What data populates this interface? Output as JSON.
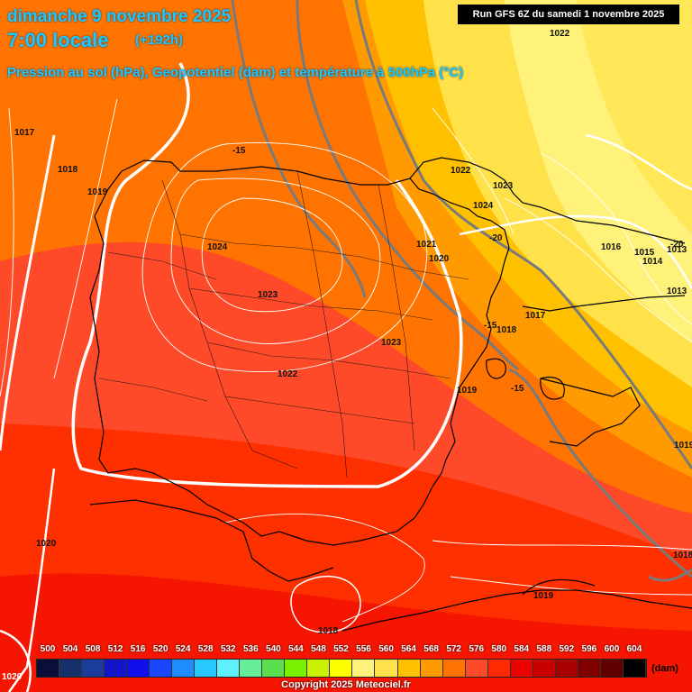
{
  "header": {
    "date": "dimanche 9 novembre 2025",
    "time": "7:00 locale",
    "lead": "(+192h)",
    "description": "Pression au sol (hPa), Geopotentiel (dam) et température à 500hPa (°C)",
    "run": "Run GFS 6Z du samedi 1 novembre 2025"
  },
  "map": {
    "region": "Péninsule ibérique",
    "pressure_labels": [
      "1022",
      "1017",
      "1018",
      "1019",
      "1024",
      "1023",
      "1023",
      "1022",
      "1022",
      "1023",
      "1024",
      "1021",
      "1020",
      "1018",
      "1017",
      "1019",
      "1016",
      "1015",
      "1014",
      "1013",
      "1013",
      "1020",
      "1018",
      "1019",
      "1018",
      "1020",
      "1019"
    ],
    "temperature_labels": [
      "-15",
      "-20",
      "-20",
      "-15",
      "-15"
    ]
  },
  "legend": {
    "values": [
      "500",
      "504",
      "508",
      "512",
      "516",
      "520",
      "524",
      "528",
      "532",
      "536",
      "540",
      "544",
      "548",
      "552",
      "556",
      "560",
      "564",
      "568",
      "572",
      "576",
      "580",
      "584",
      "588",
      "592",
      "596",
      "600",
      "604"
    ],
    "colors": [
      "#0a0f3a",
      "#15306a",
      "#1c3c9c",
      "#1414c8",
      "#1010ee",
      "#1a46ff",
      "#1e8cff",
      "#28c8ff",
      "#5ef2ff",
      "#66ee99",
      "#5ae04e",
      "#78f000",
      "#c8f000",
      "#ffff00",
      "#fff27a",
      "#ffe24a",
      "#ffc000",
      "#ff9a00",
      "#ff7400",
      "#ff4a2a",
      "#ff2a00",
      "#ec0000",
      "#c80000",
      "#a80000",
      "#800000",
      "#600000",
      "#000000"
    ],
    "unit": "(dam)"
  },
  "copyright": "Copyright 2025 Meteociel.fr"
}
